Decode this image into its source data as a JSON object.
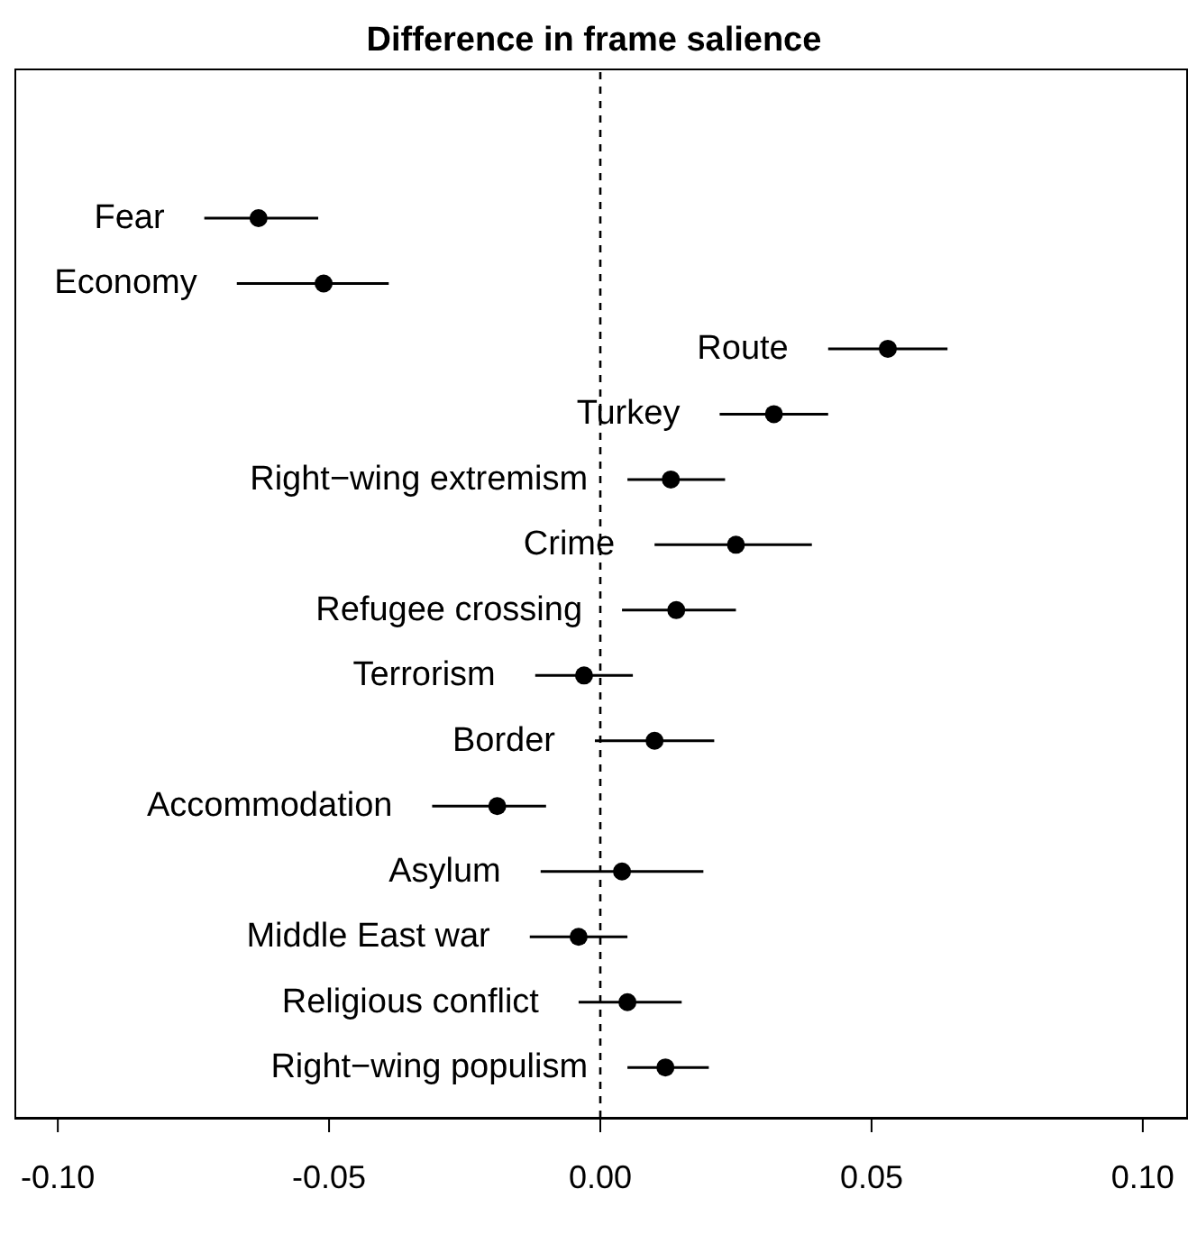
{
  "chart_data": {
    "type": "scatter",
    "orientation": "horizontal",
    "title": "Difference in frame salience",
    "categories": [
      "Fear",
      "Economy",
      "Route",
      "Turkey",
      "Right−wing extremism",
      "Crime",
      "Refugee crossing",
      "Terrorism",
      "Border",
      "Accommodation",
      "Asylum",
      "Middle East war",
      "Religious conflict",
      "Right−wing populism"
    ],
    "values": [
      -0.063,
      -0.051,
      0.053,
      0.032,
      0.013,
      0.025,
      0.014,
      -0.003,
      0.01,
      -0.019,
      0.004,
      -0.004,
      0.005,
      0.012
    ],
    "errors": [
      [
        -0.073,
        -0.052
      ],
      [
        -0.067,
        -0.039
      ],
      [
        0.042,
        0.064
      ],
      [
        0.022,
        0.042
      ],
      [
        0.005,
        0.023
      ],
      [
        0.01,
        0.039
      ],
      [
        0.004,
        0.025
      ],
      [
        -0.012,
        0.006
      ],
      [
        -0.001,
        0.021
      ],
      [
        -0.031,
        -0.01
      ],
      [
        -0.011,
        0.019
      ],
      [
        -0.013,
        0.005
      ],
      [
        -0.004,
        0.015
      ],
      [
        0.005,
        0.02
      ]
    ],
    "color": "#000000",
    "xlim": [
      -0.108,
      0.108
    ],
    "xticks": [
      {
        "value": -0.1,
        "label": "-0.10"
      },
      {
        "value": -0.05,
        "label": "-0.05"
      },
      {
        "value": 0,
        "label": "0.00"
      },
      {
        "value": 0.05,
        "label": "0.05"
      },
      {
        "value": 0.1,
        "label": "0.10"
      }
    ],
    "ref_lines": [
      {
        "axis": "x",
        "value": 0,
        "line_style": "dashed",
        "color": "#000000"
      }
    ],
    "marker": "circle",
    "grid": false,
    "legend": false
  }
}
